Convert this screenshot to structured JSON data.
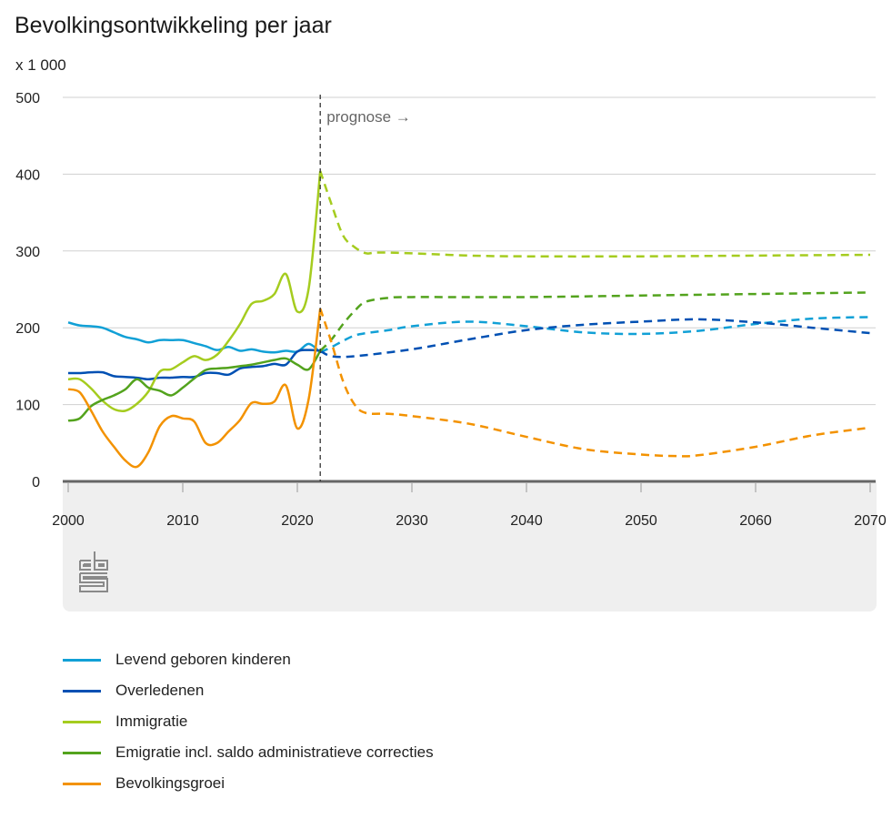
{
  "chart_data": {
    "type": "line",
    "title": "Bevolkingsontwikkeling per jaar",
    "ylabel": "x 1 000",
    "xlabel": "",
    "xlim": [
      2000,
      2071
    ],
    "ylim": [
      0,
      500
    ],
    "yticks": [
      0,
      100,
      200,
      300,
      400,
      500
    ],
    "xticks": [
      2000,
      2010,
      2020,
      2030,
      2040,
      2050,
      2060,
      2070
    ],
    "grid": true,
    "legend_position": "bottom",
    "annotation": {
      "year": 2022,
      "text": "prognose →"
    },
    "series": [
      {
        "name": "Levend geboren kinderen",
        "color": "#11a0d6",
        "observed": {
          "x": [
            2000,
            2001,
            2002,
            2003,
            2004,
            2005,
            2006,
            2007,
            2008,
            2009,
            2010,
            2011,
            2012,
            2013,
            2014,
            2015,
            2016,
            2017,
            2018,
            2019,
            2020,
            2021,
            2022
          ],
          "y": [
            207,
            203,
            202,
            200,
            194,
            188,
            185,
            181,
            184,
            184,
            184,
            180,
            176,
            171,
            175,
            170,
            172,
            169,
            168,
            170,
            169,
            179,
            168
          ]
        },
        "prognosis": {
          "x": [
            2022,
            2023,
            2024,
            2025,
            2026,
            2028,
            2030,
            2035,
            2040,
            2045,
            2050,
            2055,
            2060,
            2065,
            2070
          ],
          "y": [
            168,
            175,
            183,
            190,
            193,
            197,
            202,
            208,
            202,
            194,
            192,
            196,
            205,
            212,
            214
          ]
        }
      },
      {
        "name": "Overledenen",
        "color": "#0050b3",
        "observed": {
          "x": [
            2000,
            2001,
            2002,
            2003,
            2004,
            2005,
            2006,
            2007,
            2008,
            2009,
            2010,
            2011,
            2012,
            2013,
            2014,
            2015,
            2016,
            2017,
            2018,
            2019,
            2020,
            2021,
            2022
          ],
          "y": [
            141,
            141,
            142,
            142,
            137,
            136,
            135,
            133,
            135,
            135,
            136,
            136,
            141,
            141,
            139,
            147,
            149,
            150,
            153,
            152,
            169,
            171,
            170
          ]
        },
        "prognosis": {
          "x": [
            2022,
            2023,
            2025,
            2030,
            2035,
            2040,
            2045,
            2050,
            2055,
            2060,
            2065,
            2070
          ],
          "y": [
            170,
            163,
            163,
            172,
            185,
            197,
            204,
            208,
            211,
            207,
            200,
            193
          ]
        }
      },
      {
        "name": "Immigratie",
        "color": "#a5cc1f",
        "observed": {
          "x": [
            2000,
            2001,
            2002,
            2003,
            2004,
            2005,
            2006,
            2007,
            2008,
            2009,
            2010,
            2011,
            2012,
            2013,
            2014,
            2015,
            2016,
            2017,
            2018,
            2019,
            2020,
            2021,
            2022
          ],
          "y": [
            133,
            133,
            121,
            105,
            94,
            92,
            101,
            117,
            143,
            146,
            155,
            163,
            158,
            165,
            183,
            205,
            231,
            235,
            244,
            270,
            221,
            252,
            404
          ]
        },
        "prognosis": {
          "x": [
            2022,
            2023,
            2024,
            2025,
            2026,
            2027,
            2030,
            2035,
            2040,
            2050,
            2060,
            2070
          ],
          "y": [
            404,
            360,
            320,
            305,
            297,
            298,
            297,
            294,
            293,
            293,
            294,
            295
          ]
        }
      },
      {
        "name": "Emigratie incl. saldo administratieve correcties",
        "color": "#53a31d",
        "observed": {
          "x": [
            2000,
            2001,
            2002,
            2003,
            2004,
            2005,
            2006,
            2007,
            2008,
            2009,
            2010,
            2011,
            2012,
            2013,
            2014,
            2015,
            2016,
            2017,
            2018,
            2019,
            2020,
            2021,
            2022
          ],
          "y": [
            79,
            82,
            98,
            106,
            112,
            120,
            133,
            122,
            118,
            112,
            122,
            134,
            145,
            147,
            148,
            150,
            152,
            155,
            158,
            160,
            152,
            146,
            170
          ]
        },
        "prognosis": {
          "x": [
            2022,
            2023,
            2024,
            2025,
            2026,
            2028,
            2030,
            2040,
            2050,
            2060,
            2070
          ],
          "y": [
            170,
            185,
            205,
            222,
            234,
            239,
            240,
            240,
            242,
            244,
            246
          ]
        }
      },
      {
        "name": "Bevolkingsgroei",
        "color": "#f39200",
        "observed": {
          "x": [
            2000,
            2001,
            2002,
            2003,
            2004,
            2005,
            2006,
            2007,
            2008,
            2009,
            2010,
            2011,
            2012,
            2013,
            2014,
            2015,
            2016,
            2017,
            2018,
            2019,
            2020,
            2021,
            2022
          ],
          "y": [
            120,
            116,
            92,
            65,
            45,
            27,
            19,
            38,
            72,
            85,
            82,
            78,
            50,
            50,
            65,
            80,
            102,
            101,
            104,
            125,
            69,
            108,
            225
          ]
        },
        "prognosis": {
          "x": [
            2022,
            2023,
            2024,
            2025,
            2026,
            2028,
            2030,
            2035,
            2040,
            2045,
            2050,
            2053,
            2055,
            2060,
            2065,
            2070
          ],
          "y": [
            225,
            180,
            130,
            100,
            89,
            88,
            85,
            75,
            58,
            42,
            35,
            33,
            34,
            45,
            60,
            70
          ]
        }
      }
    ]
  }
}
